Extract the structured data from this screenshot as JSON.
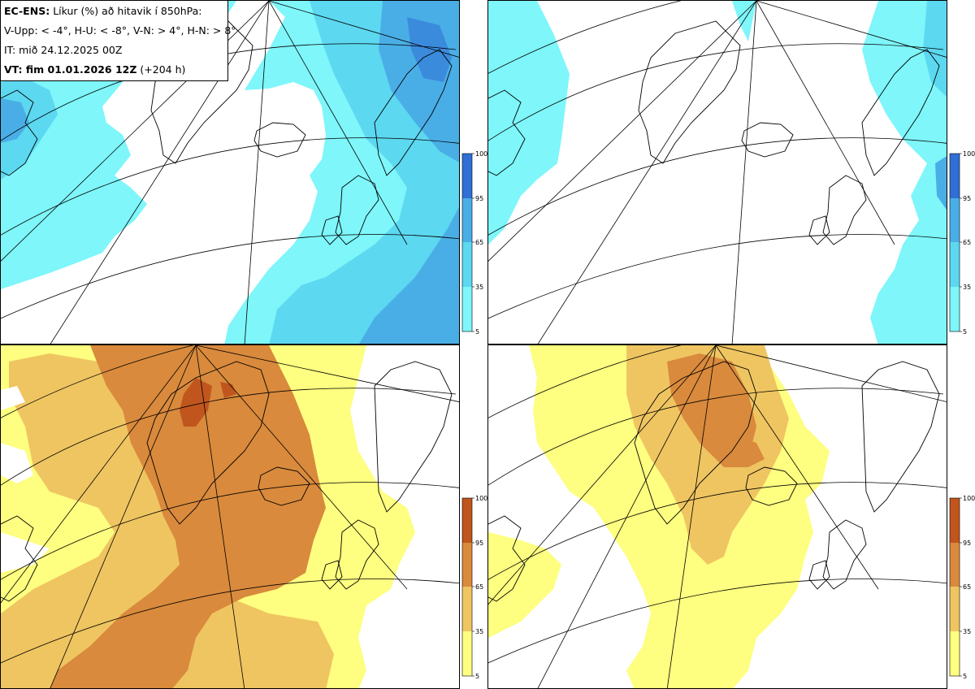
{
  "header": {
    "title_bold": "EC-ENS:",
    "title_rest": "Líkur (%) að hitavik í 850hPa:",
    "thresholds": "V-Upp: < -4°, H-U: < -8°, V-N: > 4°, H-N: > 8°",
    "initial_time": "IT: mið 24.12.2025 00Z",
    "valid_time_bold": "VT: fim 01.01.2026 12Z",
    "valid_time_rest": "(+204 h)"
  },
  "colorbars": {
    "cold": {
      "ticks": [
        "100",
        "95",
        "65",
        "35",
        "5"
      ],
      "colors": [
        "#7ef6fa",
        "#5cd8f0",
        "#4aaee6",
        "#2f6fd6"
      ]
    },
    "warm": {
      "ticks": [
        "100",
        "95",
        "65",
        "35",
        "5"
      ],
      "colors": [
        "#fefe80",
        "#efc561",
        "#d98a3c",
        "#c0561e"
      ]
    }
  },
  "panels": [
    {
      "id": "V-Upp",
      "field": "cold",
      "threshold": "< -4°"
    },
    {
      "id": "H-U",
      "field": "cold",
      "threshold": "< -8°"
    },
    {
      "id": "V-N",
      "field": "warm",
      "threshold": "> 4°"
    },
    {
      "id": "H-N",
      "field": "warm",
      "threshold": "> 8°"
    }
  ]
}
